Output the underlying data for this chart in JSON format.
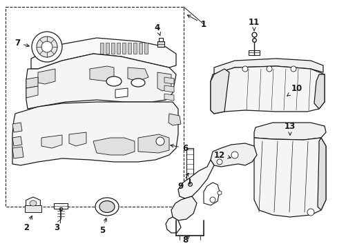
{
  "background_color": "#ffffff",
  "line_color": "#1a1a1a",
  "fig_width": 4.89,
  "fig_height": 3.6,
  "dpi": 100,
  "font_size": 8.5
}
